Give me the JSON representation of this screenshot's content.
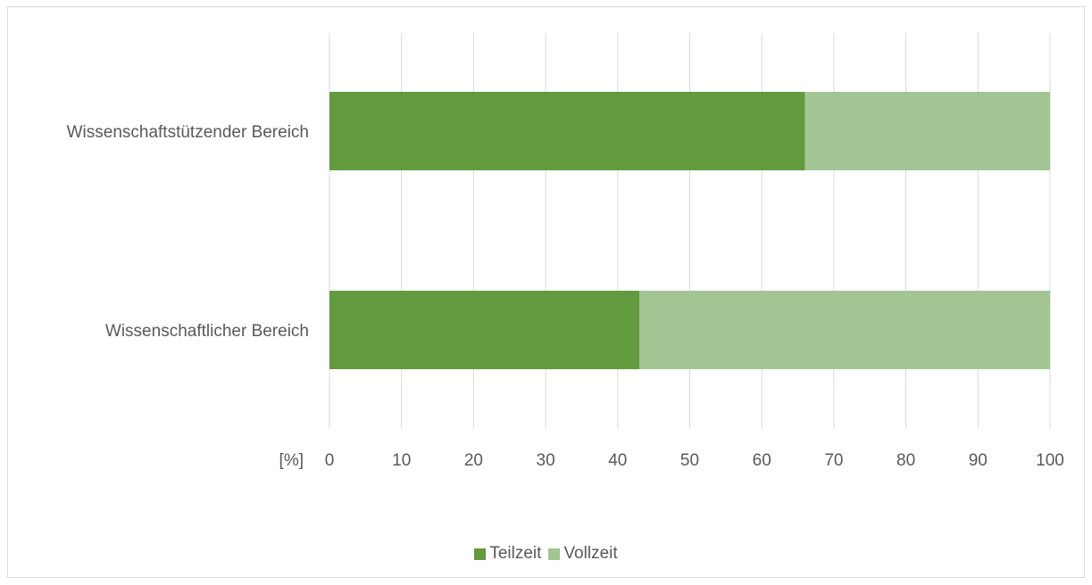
{
  "chart_data": {
    "type": "bar",
    "orientation": "horizontal",
    "stacked": true,
    "categories": [
      "Wissenschaftstützender Bereich",
      "Wissenschaftlicher Bereich"
    ],
    "series": [
      {
        "name": "Teilzeit",
        "values": [
          66,
          43
        ],
        "color": "#629a3e"
      },
      {
        "name": "Vollzeit",
        "values": [
          34,
          57
        ],
        "color": "#a3c593"
      }
    ],
    "xlabel": "[%]",
    "xlim": [
      0,
      100
    ],
    "xticks": [
      "0",
      "10",
      "20",
      "30",
      "40",
      "50",
      "60",
      "70",
      "80",
      "90",
      "100"
    ],
    "grid": true,
    "legend": "bottom"
  }
}
